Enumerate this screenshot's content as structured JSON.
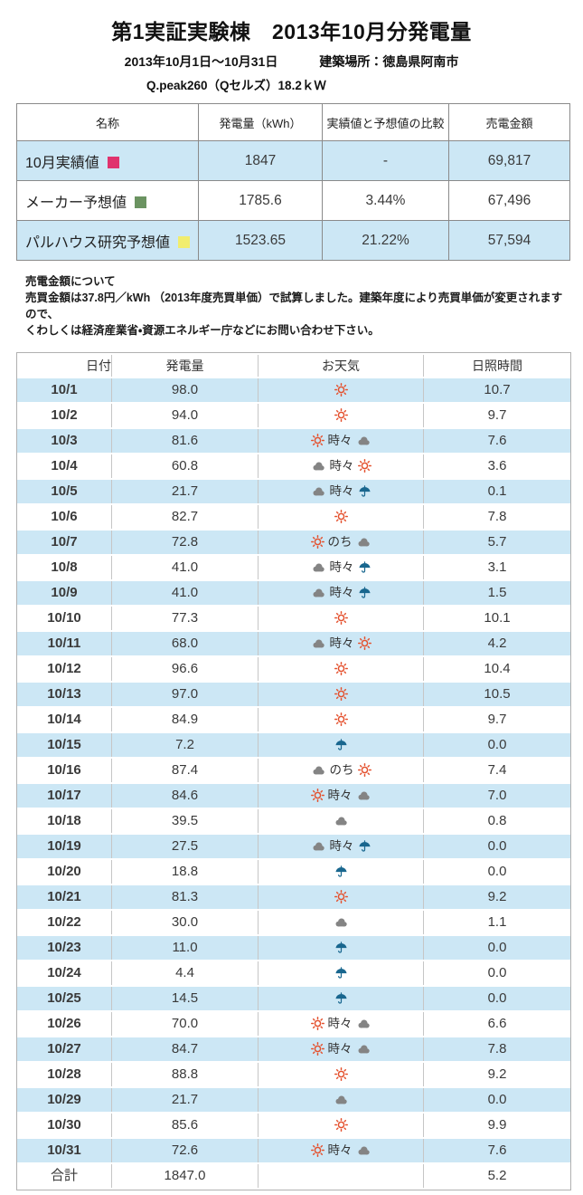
{
  "header": {
    "title": "第1実証実験棟　2013年10月分発電量",
    "period": "2013年10月1日～10月31日",
    "location": "建築場所：徳島県阿南市",
    "panel_spec": "Q.peak260（Qセルズ）18.2ｋＷ"
  },
  "summary_table": {
    "headers": [
      "名称",
      "発電量（kWh）",
      "実績値と予想値の比較",
      "売電金額"
    ],
    "rows": [
      {
        "name": "10月実績値",
        "marker_color": "#e0336e",
        "generation": "1847",
        "comparison": "-",
        "sales": "69,817"
      },
      {
        "name": "メーカー予想値",
        "marker_color": "#6b9361",
        "generation": "1785.6",
        "comparison": "3.44%",
        "sales": "67,496"
      },
      {
        "name": "パルハウス研究予想値",
        "marker_color": "#f1ed6e",
        "generation": "1523.65",
        "comparison": "21.22%",
        "sales": "57,594"
      }
    ]
  },
  "note": {
    "title": "売電金額について",
    "line1": "売買金額は37.8円／kWh （2013年度売買単価）で試算しました。建築年度により売買単価が変更されますので、",
    "line2": "くわしくは経済産業省・資源エネルギー庁などにお問い合わせ下さい。"
  },
  "daily_table": {
    "headers": [
      "日付",
      "発電量",
      "お天気",
      "日照時間"
    ],
    "rows": [
      {
        "date": "10/1",
        "generation": "98.0",
        "weather": [
          "sun"
        ],
        "sunshine": "10.7"
      },
      {
        "date": "10/2",
        "generation": "94.0",
        "weather": [
          "sun"
        ],
        "sunshine": "9.7"
      },
      {
        "date": "10/3",
        "generation": "81.6",
        "weather": [
          "sun",
          "時々",
          "cloud"
        ],
        "sunshine": "7.6"
      },
      {
        "date": "10/4",
        "generation": "60.8",
        "weather": [
          "cloud",
          "時々",
          "sun"
        ],
        "sunshine": "3.6"
      },
      {
        "date": "10/5",
        "generation": "21.7",
        "weather": [
          "cloud",
          "時々",
          "umbrella"
        ],
        "sunshine": "0.1"
      },
      {
        "date": "10/6",
        "generation": "82.7",
        "weather": [
          "sun"
        ],
        "sunshine": "7.8"
      },
      {
        "date": "10/7",
        "generation": "72.8",
        "weather": [
          "sun",
          "のち",
          "cloud"
        ],
        "sunshine": "5.7"
      },
      {
        "date": "10/8",
        "generation": "41.0",
        "weather": [
          "cloud",
          "時々",
          "umbrella"
        ],
        "sunshine": "3.1"
      },
      {
        "date": "10/9",
        "generation": "41.0",
        "weather": [
          "cloud",
          "時々",
          "umbrella"
        ],
        "sunshine": "1.5"
      },
      {
        "date": "10/10",
        "generation": "77.3",
        "weather": [
          "sun"
        ],
        "sunshine": "10.1"
      },
      {
        "date": "10/11",
        "generation": "68.0",
        "weather": [
          "cloud",
          "時々",
          "sun"
        ],
        "sunshine": "4.2"
      },
      {
        "date": "10/12",
        "generation": "96.6",
        "weather": [
          "sun"
        ],
        "sunshine": "10.4"
      },
      {
        "date": "10/13",
        "generation": "97.0",
        "weather": [
          "sun"
        ],
        "sunshine": "10.5"
      },
      {
        "date": "10/14",
        "generation": "84.9",
        "weather": [
          "sun"
        ],
        "sunshine": "9.7"
      },
      {
        "date": "10/15",
        "generation": "7.2",
        "weather": [
          "umbrella"
        ],
        "sunshine": "0.0"
      },
      {
        "date": "10/16",
        "generation": "87.4",
        "weather": [
          "cloud",
          "のち",
          "sun"
        ],
        "sunshine": "7.4"
      },
      {
        "date": "10/17",
        "generation": "84.6",
        "weather": [
          "sun",
          "時々",
          "cloud"
        ],
        "sunshine": "7.0"
      },
      {
        "date": "10/18",
        "generation": "39.5",
        "weather": [
          "cloud"
        ],
        "sunshine": "0.8"
      },
      {
        "date": "10/19",
        "generation": "27.5",
        "weather": [
          "cloud",
          "時々",
          "umbrella"
        ],
        "sunshine": "0.0"
      },
      {
        "date": "10/20",
        "generation": "18.8",
        "weather": [
          "umbrella"
        ],
        "sunshine": "0.0"
      },
      {
        "date": "10/21",
        "generation": "81.3",
        "weather": [
          "sun"
        ],
        "sunshine": "9.2"
      },
      {
        "date": "10/22",
        "generation": "30.0",
        "weather": [
          "cloud"
        ],
        "sunshine": "1.1"
      },
      {
        "date": "10/23",
        "generation": "11.0",
        "weather": [
          "umbrella"
        ],
        "sunshine": "0.0"
      },
      {
        "date": "10/24",
        "generation": "4.4",
        "weather": [
          "umbrella"
        ],
        "sunshine": "0.0"
      },
      {
        "date": "10/25",
        "generation": "14.5",
        "weather": [
          "umbrella"
        ],
        "sunshine": "0.0"
      },
      {
        "date": "10/26",
        "generation": "70.0",
        "weather": [
          "sun",
          "時々",
          "cloud"
        ],
        "sunshine": "6.6"
      },
      {
        "date": "10/27",
        "generation": "84.7",
        "weather": [
          "sun",
          "時々",
          "cloud"
        ],
        "sunshine": "7.8"
      },
      {
        "date": "10/28",
        "generation": "88.8",
        "weather": [
          "sun"
        ],
        "sunshine": "9.2"
      },
      {
        "date": "10/29",
        "generation": "21.7",
        "weather": [
          "cloud"
        ],
        "sunshine": "0.0"
      },
      {
        "date": "10/30",
        "generation": "85.6",
        "weather": [
          "sun"
        ],
        "sunshine": "9.9"
      },
      {
        "date": "10/31",
        "generation": "72.6",
        "weather": [
          "sun",
          "時々",
          "cloud"
        ],
        "sunshine": "7.6"
      }
    ],
    "total_row": {
      "date": "合計",
      "generation": "1847.0",
      "weather": [],
      "sunshine": "5.2"
    }
  },
  "icons": {
    "sun": "weather-sunny-icon",
    "cloud": "weather-cloudy-icon",
    "umbrella": "weather-rainy-icon"
  },
  "colors": {
    "row_highlight": "#cce7f5",
    "sun": "#e4512e",
    "cloud": "#848484",
    "umbrella": "#19678f"
  }
}
